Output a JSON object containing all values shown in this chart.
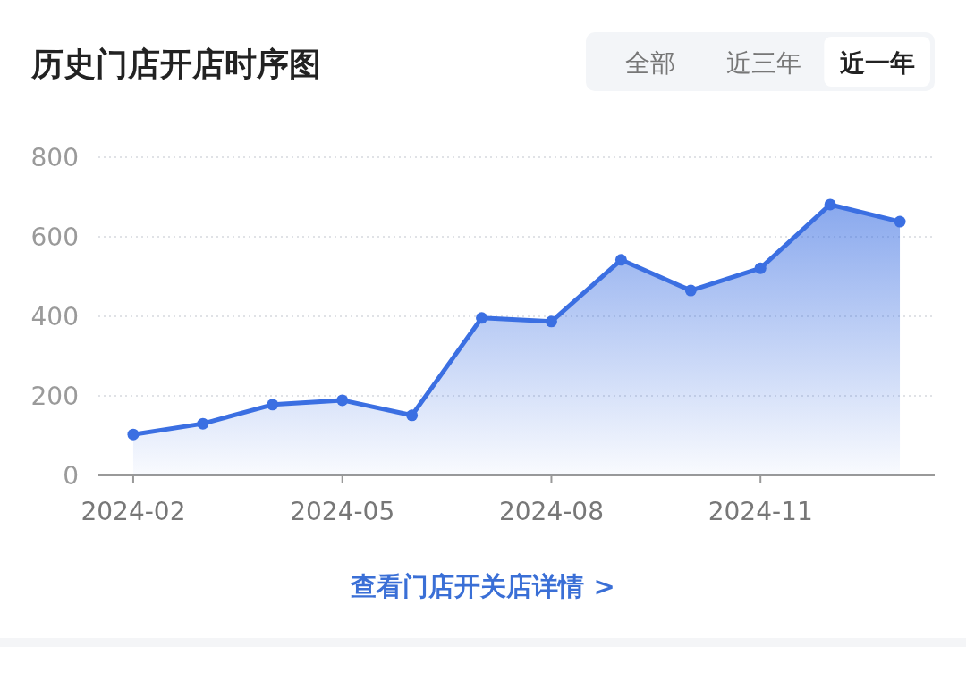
{
  "chart_data": {
    "type": "area",
    "title": "历史门店开店时序图",
    "categories": [
      "2024-02",
      null,
      null,
      "2024-05",
      null,
      null,
      "2024-08",
      null,
      null,
      "2024-11",
      null,
      null
    ],
    "series": [
      {
        "color": "#3b6fe2",
        "values": [
          103,
          130,
          178,
          189,
          151,
          396,
          387,
          542,
          465,
          521,
          681,
          638
        ]
      }
    ],
    "ylim": [
      0,
      800
    ],
    "yticks": [
      0,
      200,
      400,
      600,
      800
    ],
    "grid": "y",
    "marker": "circle",
    "line_style": "solid",
    "annotations": [
      "全部",
      "近三年",
      "近一年",
      "查看门店开关店详情 >"
    ]
  }
}
